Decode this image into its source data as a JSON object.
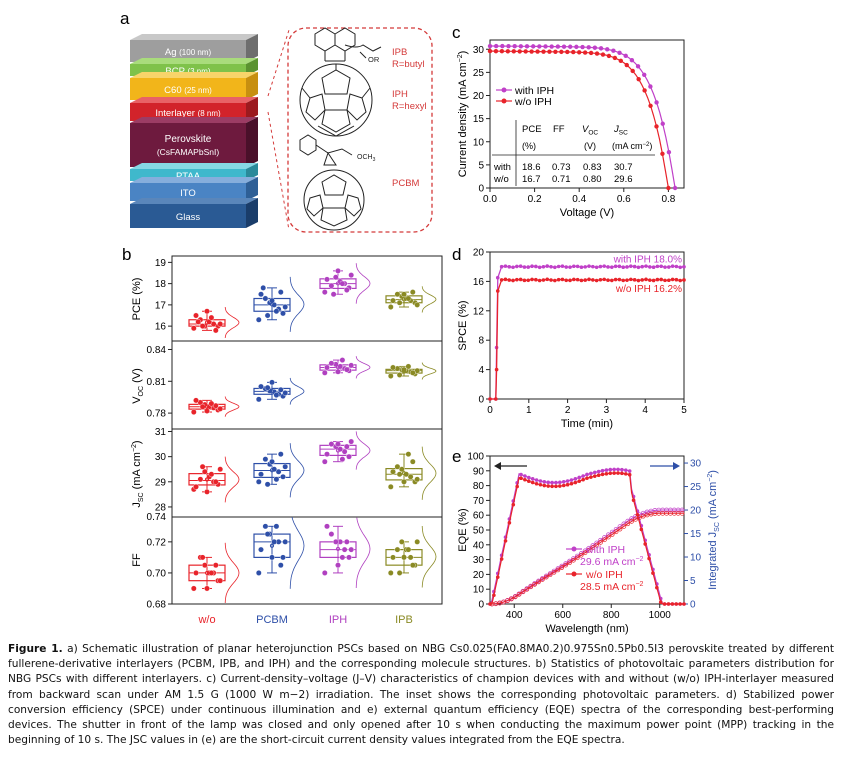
{
  "panel_a": {
    "label": "a",
    "layers": [
      "Ag",
      "(100 nm)",
      "BCP",
      "(3 nm)",
      "C",
      "60",
      "(25 nm)",
      "Interlayer",
      "(8 nm)",
      "Perovskite",
      "(CsFAMAPbSnI)",
      "PTAA",
      "ITO",
      "Glass"
    ],
    "ipb_label": "IPB",
    "ipb_r": "R=butyl",
    "iph_label": "IPH",
    "iph_r": "R=hexyl",
    "pcbm_label": "PCBM",
    "ester_or": "OR",
    "ester_och3": "OCH",
    "ester_och3_sub": "3"
  },
  "panel_b": {
    "label": "b",
    "categories": [
      "w/o",
      "PCBM",
      "IPH",
      "IPB"
    ],
    "category_colors": [
      "#e8232a",
      "#2e4fa8",
      "#b040c0",
      "#8a8a24"
    ],
    "ylabels": [
      "PCE (%)",
      "V",
      "OC",
      " (V)",
      "J",
      "SC",
      " (mA cm",
      "−2",
      ")",
      "FF"
    ]
  },
  "chart_data": [
    {
      "type": "scatter",
      "title": "PCE",
      "ylabel": "PCE (%)",
      "ylim": [
        15.3,
        19.3
      ],
      "yticks": [
        "16",
        "17",
        "18",
        "19"
      ],
      "categories": [
        "w/o",
        "PCBM",
        "IPH",
        "IPB"
      ],
      "series": [
        {
          "name": "w/o",
          "values": [
            15.9,
            16.0,
            16.1,
            16.2,
            16.0,
            16.3,
            16.5,
            16.1,
            15.8,
            16.4,
            16.7,
            16.0,
            16.2
          ]
        },
        {
          "name": "PCBM",
          "values": [
            16.3,
            16.6,
            16.8,
            17.0,
            17.1,
            17.3,
            17.5,
            16.9,
            17.6,
            16.7,
            17.2,
            16.5,
            17.8
          ]
        },
        {
          "name": "IPH",
          "values": [
            17.6,
            17.8,
            18.0,
            18.1,
            18.3,
            17.9,
            18.2,
            18.4,
            17.7,
            18.0,
            18.6,
            17.5
          ]
        },
        {
          "name": "IPB",
          "values": [
            16.9,
            17.1,
            17.2,
            17.3,
            17.4,
            17.5,
            17.2,
            17.0,
            17.6,
            17.3,
            17.5,
            17.1
          ]
        }
      ]
    },
    {
      "type": "scatter",
      "title": "VOC",
      "ylabel": "VOC (V)",
      "ylim": [
        0.765,
        0.848
      ],
      "yticks": [
        "0.78",
        "0.81",
        "0.84"
      ],
      "categories": [
        "w/o",
        "PCBM",
        "IPH",
        "IPB"
      ],
      "series": [
        {
          "name": "w/o",
          "values": [
            0.781,
            0.783,
            0.785,
            0.786,
            0.788,
            0.79,
            0.792,
            0.784,
            0.787,
            0.789,
            0.782,
            0.786
          ]
        },
        {
          "name": "PCBM",
          "values": [
            0.793,
            0.796,
            0.798,
            0.8,
            0.801,
            0.803,
            0.805,
            0.799,
            0.802,
            0.797,
            0.809,
            0.804
          ]
        },
        {
          "name": "IPH",
          "values": [
            0.818,
            0.82,
            0.822,
            0.824,
            0.826,
            0.827,
            0.823,
            0.825,
            0.821,
            0.83,
            0.819
          ]
        },
        {
          "name": "IPB",
          "values": [
            0.815,
            0.817,
            0.819,
            0.82,
            0.821,
            0.822,
            0.823,
            0.82,
            0.818,
            0.824,
            0.821,
            0.816
          ]
        }
      ]
    },
    {
      "type": "scatter",
      "title": "JSC",
      "ylabel": "JSC (mA cm-2)",
      "ylim": [
        27.6,
        31.1
      ],
      "yticks": [
        "28",
        "29",
        "30",
        "31"
      ],
      "extra_tick": "0.74",
      "categories": [
        "w/o",
        "PCBM",
        "IPH",
        "IPB"
      ],
      "series": [
        {
          "name": "w/o",
          "values": [
            28.7,
            28.9,
            29.0,
            29.2,
            29.4,
            29.1,
            28.8,
            29.5,
            29.0,
            29.3,
            28.6,
            29.6
          ]
        },
        {
          "name": "PCBM",
          "values": [
            29.0,
            29.2,
            29.4,
            29.5,
            29.7,
            29.9,
            29.3,
            29.6,
            30.1,
            29.1,
            29.8,
            28.9
          ]
        },
        {
          "name": "IPH",
          "values": [
            29.8,
            30.0,
            30.2,
            30.3,
            30.4,
            30.5,
            30.1,
            30.6,
            30.4,
            29.9,
            30.5
          ]
        },
        {
          "name": "IPB",
          "values": [
            28.8,
            29.0,
            29.2,
            29.3,
            29.5,
            29.6,
            29.4,
            29.1,
            29.8,
            30.1,
            29.0,
            29.3
          ]
        }
      ]
    },
    {
      "type": "scatter",
      "title": "FF",
      "ylabel": "FF",
      "ylim": [
        0.68,
        0.736
      ],
      "yticks": [
        "0.68",
        "0.70",
        "0.72"
      ],
      "categories": [
        "w/o",
        "PCBM",
        "IPH",
        "IPB"
      ],
      "series": [
        {
          "name": "w/o",
          "values": [
            0.69,
            0.695,
            0.7,
            0.7,
            0.705,
            0.71,
            0.7,
            0.695,
            0.705,
            0.7,
            0.69,
            0.71
          ]
        },
        {
          "name": "PCBM",
          "values": [
            0.7,
            0.71,
            0.72,
            0.72,
            0.725,
            0.73,
            0.715,
            0.72,
            0.705,
            0.73,
            0.71,
            0.725
          ]
        },
        {
          "name": "IPH",
          "values": [
            0.7,
            0.71,
            0.715,
            0.72,
            0.72,
            0.725,
            0.73,
            0.715,
            0.72,
            0.71,
            0.705
          ]
        },
        {
          "name": "IPB",
          "values": [
            0.7,
            0.705,
            0.71,
            0.715,
            0.72,
            0.715,
            0.71,
            0.72,
            0.705,
            0.715,
            0.71,
            0.7
          ]
        }
      ]
    },
    {
      "type": "line",
      "title": "c",
      "xlabel": "Voltage (V)",
      "ylabel": "Current density (mA cm-2)",
      "xlim": [
        0,
        0.87
      ],
      "ylim": [
        0,
        32
      ],
      "xticks": [
        "0.0",
        "0.2",
        "0.4",
        "0.6",
        "0.8"
      ],
      "yticks": [
        "0",
        "5",
        "10",
        "15",
        "20",
        "25",
        "30"
      ],
      "series": [
        {
          "name": "with IPH",
          "color": "#c040c8",
          "jsc": 30.7,
          "voc": 0.83
        },
        {
          "name": "w/o IPH",
          "color": "#e8232a",
          "jsc": 29.6,
          "voc": 0.8
        }
      ],
      "inset_table": {
        "headers": [
          "PCE",
          "FF",
          "V",
          "OC",
          "J",
          "SC",
          "(%)",
          "(V)",
          "(mA cm",
          "−2",
          ")"
        ],
        "rows": [
          [
            "with",
            "18.6",
            "0.73",
            "0.83",
            "30.7"
          ],
          [
            "w/o",
            "16.7",
            "0.71",
            "0.80",
            "29.6"
          ]
        ]
      }
    },
    {
      "type": "line",
      "title": "d",
      "xlabel": "Time (min)",
      "ylabel": "SPCE (%)",
      "xlim": [
        0,
        5
      ],
      "ylim": [
        0,
        20
      ],
      "xticks": [
        "0",
        "1",
        "2",
        "3",
        "4",
        "5"
      ],
      "yticks": [
        "0",
        "4",
        "8",
        "12",
        "16",
        "20"
      ],
      "series": [
        {
          "name": "with IPH",
          "color": "#c040c8",
          "steady": 18.0,
          "label": "18.0%"
        },
        {
          "name": "w/o IPH",
          "color": "#e8232a",
          "steady": 16.2,
          "label": "16.2%"
        }
      ]
    },
    {
      "type": "line",
      "title": "e",
      "xlabel": "Wavelength (nm)",
      "ylabel": "EQE (%)",
      "ylabel_right": "Integrated J_SC (mA cm-2)",
      "xlim": [
        300,
        1100
      ],
      "ylim": [
        0,
        100
      ],
      "ylim_right": [
        0,
        31.5
      ],
      "xticks": [
        "400",
        "600",
        "800",
        "1000"
      ],
      "yticks": [
        "0",
        "10",
        "20",
        "30",
        "40",
        "50",
        "60",
        "70",
        "80",
        "90",
        "100"
      ],
      "yticks_right": [
        "0",
        "5",
        "10",
        "15",
        "20",
        "25",
        "30"
      ],
      "series": [
        {
          "name": "with IPH",
          "color": "#c040c8",
          "integrated": "29.6 mA cm",
          "integrated_sup": "−2"
        },
        {
          "name": "w/o IPH",
          "color": "#e8232a",
          "integrated": "28.5 mA cm",
          "integrated_sup": "−2"
        }
      ]
    }
  ],
  "caption": {
    "figure_label": "Figure 1.",
    "text": "a) Schematic illustration of planar heterojunction PSCs based on NBG Cs0.025(FA0.8MA0.2)0.975Sn0.5Pb0.5I3 perovskite treated by different fullerene-derivative interlayers (PCBM, IPB, and IPH) and the corresponding molecule structures. b) Statistics of photovoltaic parameters distribution for NBG PSCs with different interlayers. c) Current-density–voltage (J–V) characteristics of champion devices with and without (w/o) IPH-interlayer measured from backward scan under AM 1.5 G (1000 W m−2) irradiation. The inset shows the corresponding photovoltaic parameters. d) Stabilized power conversion efficiency (SPCE) under continuous illumination and e) external quantum efficiency (EQE) spectra of the corresponding best-performing devices. The shutter in front of the lamp was closed and only opened after 10 s when conducting the maximum power point (MPP) tracking in the beginning of 10 s. The JSC values in (e) are the short-circuit current density values integrated from the EQE spectra."
  }
}
